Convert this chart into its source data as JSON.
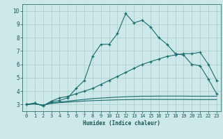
{
  "xlabel": "Humidex (Indice chaleur)",
  "bg_color": "#cce8e8",
  "grid_color": "#aacccc",
  "line_color": "#1a6b6b",
  "xlim": [
    -0.5,
    23.5
  ],
  "ylim": [
    2.5,
    10.5
  ],
  "xticks": [
    0,
    1,
    2,
    3,
    4,
    5,
    6,
    7,
    8,
    9,
    10,
    11,
    12,
    13,
    14,
    15,
    16,
    17,
    18,
    19,
    20,
    21,
    22,
    23
  ],
  "yticks": [
    3,
    4,
    5,
    6,
    7,
    8,
    9,
    10
  ],
  "line1_x": [
    0,
    1,
    2,
    3,
    4,
    5,
    6,
    7,
    8,
    9,
    10,
    11,
    12,
    13,
    14,
    15,
    16,
    17,
    18,
    19,
    20,
    21,
    22,
    23
  ],
  "line1_y": [
    3.0,
    3.1,
    2.9,
    3.2,
    3.3,
    3.5,
    4.2,
    4.8,
    6.6,
    7.5,
    7.5,
    8.3,
    9.8,
    9.1,
    9.3,
    8.8,
    8.0,
    7.5,
    6.8,
    6.7,
    6.0,
    5.9,
    4.9,
    3.8
  ],
  "line2_x": [
    0,
    1,
    2,
    3,
    4,
    5,
    6,
    7,
    8,
    9,
    10,
    11,
    12,
    13,
    14,
    15,
    16,
    17,
    18,
    19,
    20,
    21,
    22,
    23
  ],
  "line2_y": [
    3.0,
    3.1,
    2.9,
    3.25,
    3.5,
    3.6,
    3.8,
    4.0,
    4.2,
    4.5,
    4.8,
    5.1,
    5.4,
    5.7,
    6.0,
    6.2,
    6.4,
    6.6,
    6.7,
    6.8,
    6.8,
    6.9,
    6.0,
    4.8
  ],
  "line3_x": [
    0,
    1,
    2,
    3,
    4,
    5,
    6,
    7,
    8,
    9,
    10,
    11,
    12,
    13,
    14,
    15,
    16,
    17,
    18,
    19,
    20,
    21,
    22,
    23
  ],
  "line3_y": [
    3.0,
    3.05,
    2.95,
    3.1,
    3.18,
    3.25,
    3.32,
    3.38,
    3.44,
    3.48,
    3.52,
    3.55,
    3.58,
    3.6,
    3.62,
    3.62,
    3.63,
    3.63,
    3.63,
    3.63,
    3.62,
    3.62,
    3.62,
    3.62
  ],
  "line4_x": [
    0,
    1,
    2,
    3,
    4,
    5,
    6,
    7,
    8,
    9,
    10,
    11,
    12,
    13,
    14,
    15,
    16,
    17,
    18,
    19,
    20,
    21,
    22,
    23
  ],
  "line4_y": [
    3.0,
    3.05,
    2.95,
    3.08,
    3.14,
    3.18,
    3.22,
    3.26,
    3.29,
    3.31,
    3.33,
    3.35,
    3.36,
    3.37,
    3.38,
    3.38,
    3.38,
    3.38,
    3.38,
    3.38,
    3.37,
    3.37,
    3.37,
    3.37
  ],
  "tick_color": "#1a5555",
  "label_fontsize": 5.0,
  "xlabel_fontsize": 5.5
}
